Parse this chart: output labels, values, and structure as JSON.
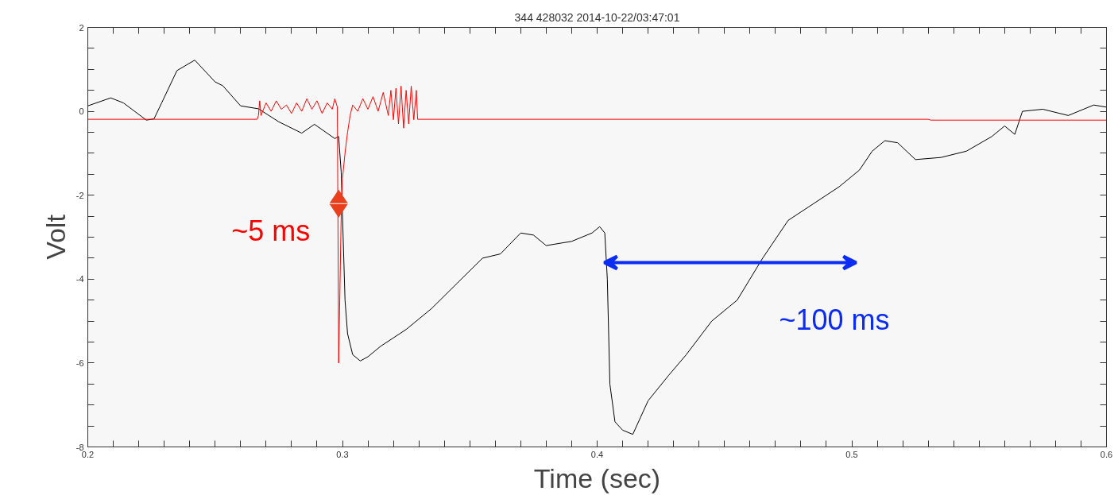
{
  "chart_data": {
    "type": "line",
    "title": "344 428032 2014-10-22/03:47:01",
    "xlabel": "Time (sec)",
    "ylabel": "Volt",
    "xlim": [
      0.2,
      0.6
    ],
    "ylim": [
      -8,
      2
    ],
    "xticks": [
      0.2,
      {
        "value": 0.21,
        "label": null
      },
      {
        "value": 0.22,
        "label": null
      },
      {
        "value": 0.23,
        "label": null
      },
      {
        "value": 0.24,
        "label": null
      },
      {
        "value": 0.25,
        "label": null
      },
      {
        "value": 0.26,
        "label": null
      },
      {
        "value": 0.27,
        "label": null
      },
      {
        "value": 0.28,
        "label": null
      },
      {
        "value": 0.29,
        "label": null
      },
      0.3,
      {
        "value": 0.31,
        "label": null
      },
      {
        "value": 0.32,
        "label": null
      },
      {
        "value": 0.33,
        "label": null
      },
      {
        "value": 0.34,
        "label": null
      },
      {
        "value": 0.35,
        "label": null
      },
      {
        "value": 0.36,
        "label": null
      },
      {
        "value": 0.37,
        "label": null
      },
      {
        "value": 0.38,
        "label": null
      },
      {
        "value": 0.39,
        "label": null
      },
      0.4,
      {
        "value": 0.41,
        "label": null
      },
      {
        "value": 0.42,
        "label": null
      },
      {
        "value": 0.43,
        "label": null
      },
      {
        "value": 0.44,
        "label": null
      },
      {
        "value": 0.45,
        "label": null
      },
      {
        "value": 0.46,
        "label": null
      },
      {
        "value": 0.47,
        "label": null
      },
      {
        "value": 0.48,
        "label": null
      },
      {
        "value": 0.49,
        "label": null
      },
      0.5,
      {
        "value": 0.51,
        "label": null
      },
      {
        "value": 0.52,
        "label": null
      },
      {
        "value": 0.53,
        "label": null
      },
      {
        "value": 0.54,
        "label": null
      },
      {
        "value": 0.55,
        "label": null
      },
      {
        "value": 0.56,
        "label": null
      },
      {
        "value": 0.57,
        "label": null
      },
      {
        "value": 0.58,
        "label": null
      },
      {
        "value": 0.59,
        "label": null
      },
      0.6
    ],
    "yticks": [
      -8,
      {
        "value": -7.5,
        "label": null
      },
      {
        "value": -7,
        "label": null
      },
      {
        "value": -6.5,
        "label": null
      },
      -6,
      {
        "value": -5.5,
        "label": null
      },
      {
        "value": -5,
        "label": null
      },
      {
        "value": -4.5,
        "label": null
      },
      -4,
      {
        "value": -3.5,
        "label": null
      },
      {
        "value": -3,
        "label": null
      },
      {
        "value": -2.5,
        "label": null
      },
      -2,
      {
        "value": -1.5,
        "label": null
      },
      {
        "value": -1,
        "label": null
      },
      {
        "value": -0.5,
        "label": null
      },
      0,
      {
        "value": 0.5,
        "label": null
      },
      {
        "value": 1,
        "label": null
      },
      {
        "value": 1.5,
        "label": null
      },
      2
    ],
    "grid": false,
    "marker": "none",
    "line_style": "solid",
    "series": [
      {
        "color": "#000000",
        "x": [
          0.2,
          0.209,
          0.214,
          0.223,
          0.226,
          0.229,
          0.235,
          0.242,
          0.25,
          0.253,
          0.26,
          0.267,
          0.275,
          0.284,
          0.289,
          0.297,
          0.2985,
          0.2995,
          0.301,
          0.302,
          0.304,
          0.307,
          0.31,
          0.315,
          0.325,
          0.335,
          0.345,
          0.355,
          0.362,
          0.37,
          0.375,
          0.38,
          0.39,
          0.398,
          0.401,
          0.403,
          0.404,
          0.405,
          0.407,
          0.41,
          0.414,
          0.417,
          0.42,
          0.428,
          0.435,
          0.445,
          0.455,
          0.465,
          0.475,
          0.485,
          0.495,
          0.503,
          0.508,
          0.513,
          0.518,
          0.525,
          0.535,
          0.545,
          0.555,
          0.56,
          0.564,
          0.567,
          0.575,
          0.585,
          0.595,
          0.6
        ],
        "values": [
          0.13,
          0.32,
          0.2,
          -0.21,
          -0.18,
          0.2,
          0.97,
          1.22,
          0.7,
          0.61,
          0.13,
          0.06,
          -0.25,
          -0.52,
          -0.31,
          -0.65,
          -0.6,
          -1.45,
          -4.5,
          -5.3,
          -5.8,
          -5.95,
          -5.85,
          -5.6,
          -5.2,
          -4.7,
          -4.1,
          -3.5,
          -3.4,
          -2.9,
          -2.95,
          -3.2,
          -3.1,
          -2.9,
          -2.75,
          -2.9,
          -4.0,
          -6.5,
          -7.4,
          -7.6,
          -7.7,
          -7.3,
          -6.9,
          -6.3,
          -5.8,
          -5.0,
          -4.5,
          -3.5,
          -2.6,
          -2.2,
          -1.8,
          -1.4,
          -0.95,
          -0.7,
          -0.75,
          -1.15,
          -1.1,
          -0.95,
          -0.6,
          -0.35,
          -0.55,
          0.0,
          0.05,
          -0.1,
          0.15,
          0.1
        ]
      },
      {
        "color": "#ff0000",
        "x": [
          0.2,
          0.2665,
          0.267,
          0.2675,
          0.268,
          0.27,
          0.272,
          0.274,
          0.276,
          0.278,
          0.28,
          0.282,
          0.284,
          0.286,
          0.288,
          0.29,
          0.292,
          0.294,
          0.296,
          0.297,
          0.298,
          0.2985,
          0.2995,
          0.3,
          0.301,
          0.302,
          0.303,
          0.304,
          0.306,
          0.308,
          0.31,
          0.312,
          0.314,
          0.316,
          0.318,
          0.319,
          0.32,
          0.321,
          0.322,
          0.323,
          0.324,
          0.325,
          0.326,
          0.327,
          0.328,
          0.329,
          0.3295,
          0.53,
          0.531,
          0.6
        ],
        "values": [
          -0.19,
          -0.19,
          -0.1,
          0.25,
          -0.1,
          0.2,
          0.0,
          0.25,
          0.05,
          0.15,
          -0.05,
          0.2,
          0.0,
          0.3,
          0.05,
          0.25,
          -0.05,
          0.2,
          0.05,
          0.3,
          0.1,
          -6.0,
          -2.5,
          -1.6,
          -1.0,
          -0.5,
          -0.1,
          0.15,
          0.0,
          0.3,
          0.05,
          0.35,
          0.0,
          0.45,
          -0.1,
          0.5,
          -0.2,
          0.55,
          -0.3,
          0.6,
          -0.4,
          0.5,
          -0.3,
          0.6,
          -0.2,
          0.5,
          -0.19,
          -0.19,
          -0.21,
          -0.21
        ]
      }
    ],
    "annotations": [
      {
        "text": "~5 ms",
        "x": 0.2985,
        "y": -2.2
      },
      "~100 ms"
    ]
  }
}
